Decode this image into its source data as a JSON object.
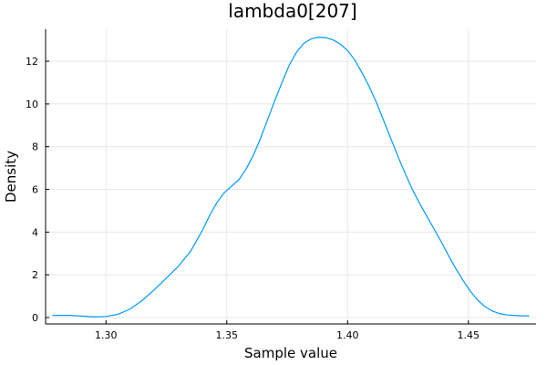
{
  "chart_data": {
    "type": "line",
    "title": "lambda0[207]",
    "xlabel": "Sample value",
    "ylabel": "Density",
    "xlim": [
      1.275,
      1.478
    ],
    "ylim": [
      -0.3,
      13.5
    ],
    "xticks": [
      1.3,
      1.35,
      1.4,
      1.45
    ],
    "xtick_labels": [
      "1.30",
      "1.35",
      "1.40",
      "1.45"
    ],
    "yticks": [
      0,
      2,
      4,
      6,
      8,
      10,
      12
    ],
    "ytick_labels": [
      "0",
      "2",
      "4",
      "6",
      "8",
      "10",
      "12"
    ],
    "grid": true,
    "legend": "none",
    "series": [
      {
        "color": "#009AFA",
        "x": [
          1.278,
          1.285,
          1.29,
          1.295,
          1.3,
          1.305,
          1.31,
          1.315,
          1.32,
          1.325,
          1.33,
          1.335,
          1.34,
          1.343,
          1.346,
          1.349,
          1.352,
          1.355,
          1.358,
          1.361,
          1.364,
          1.367,
          1.37,
          1.373,
          1.376,
          1.379,
          1.382,
          1.385,
          1.388,
          1.391,
          1.394,
          1.397,
          1.4,
          1.403,
          1.406,
          1.409,
          1.412,
          1.415,
          1.418,
          1.421,
          1.424,
          1.427,
          1.43,
          1.433,
          1.436,
          1.439,
          1.442,
          1.445,
          1.448,
          1.451,
          1.454,
          1.457,
          1.46,
          1.463,
          1.466,
          1.469,
          1.472,
          1.475
        ],
        "y": [
          0.1,
          0.1,
          0.07,
          0.03,
          0.05,
          0.15,
          0.4,
          0.8,
          1.3,
          1.85,
          2.4,
          3.1,
          4.1,
          4.8,
          5.4,
          5.85,
          6.15,
          6.45,
          6.95,
          7.6,
          8.4,
          9.3,
          10.2,
          11.05,
          11.85,
          12.45,
          12.85,
          13.05,
          13.12,
          13.1,
          13.0,
          12.8,
          12.5,
          12.05,
          11.45,
          10.8,
          10.05,
          9.2,
          8.35,
          7.5,
          6.7,
          5.95,
          5.3,
          4.7,
          4.1,
          3.5,
          2.85,
          2.25,
          1.7,
          1.2,
          0.8,
          0.5,
          0.3,
          0.18,
          0.12,
          0.1,
          0.08,
          0.08
        ]
      }
    ]
  }
}
